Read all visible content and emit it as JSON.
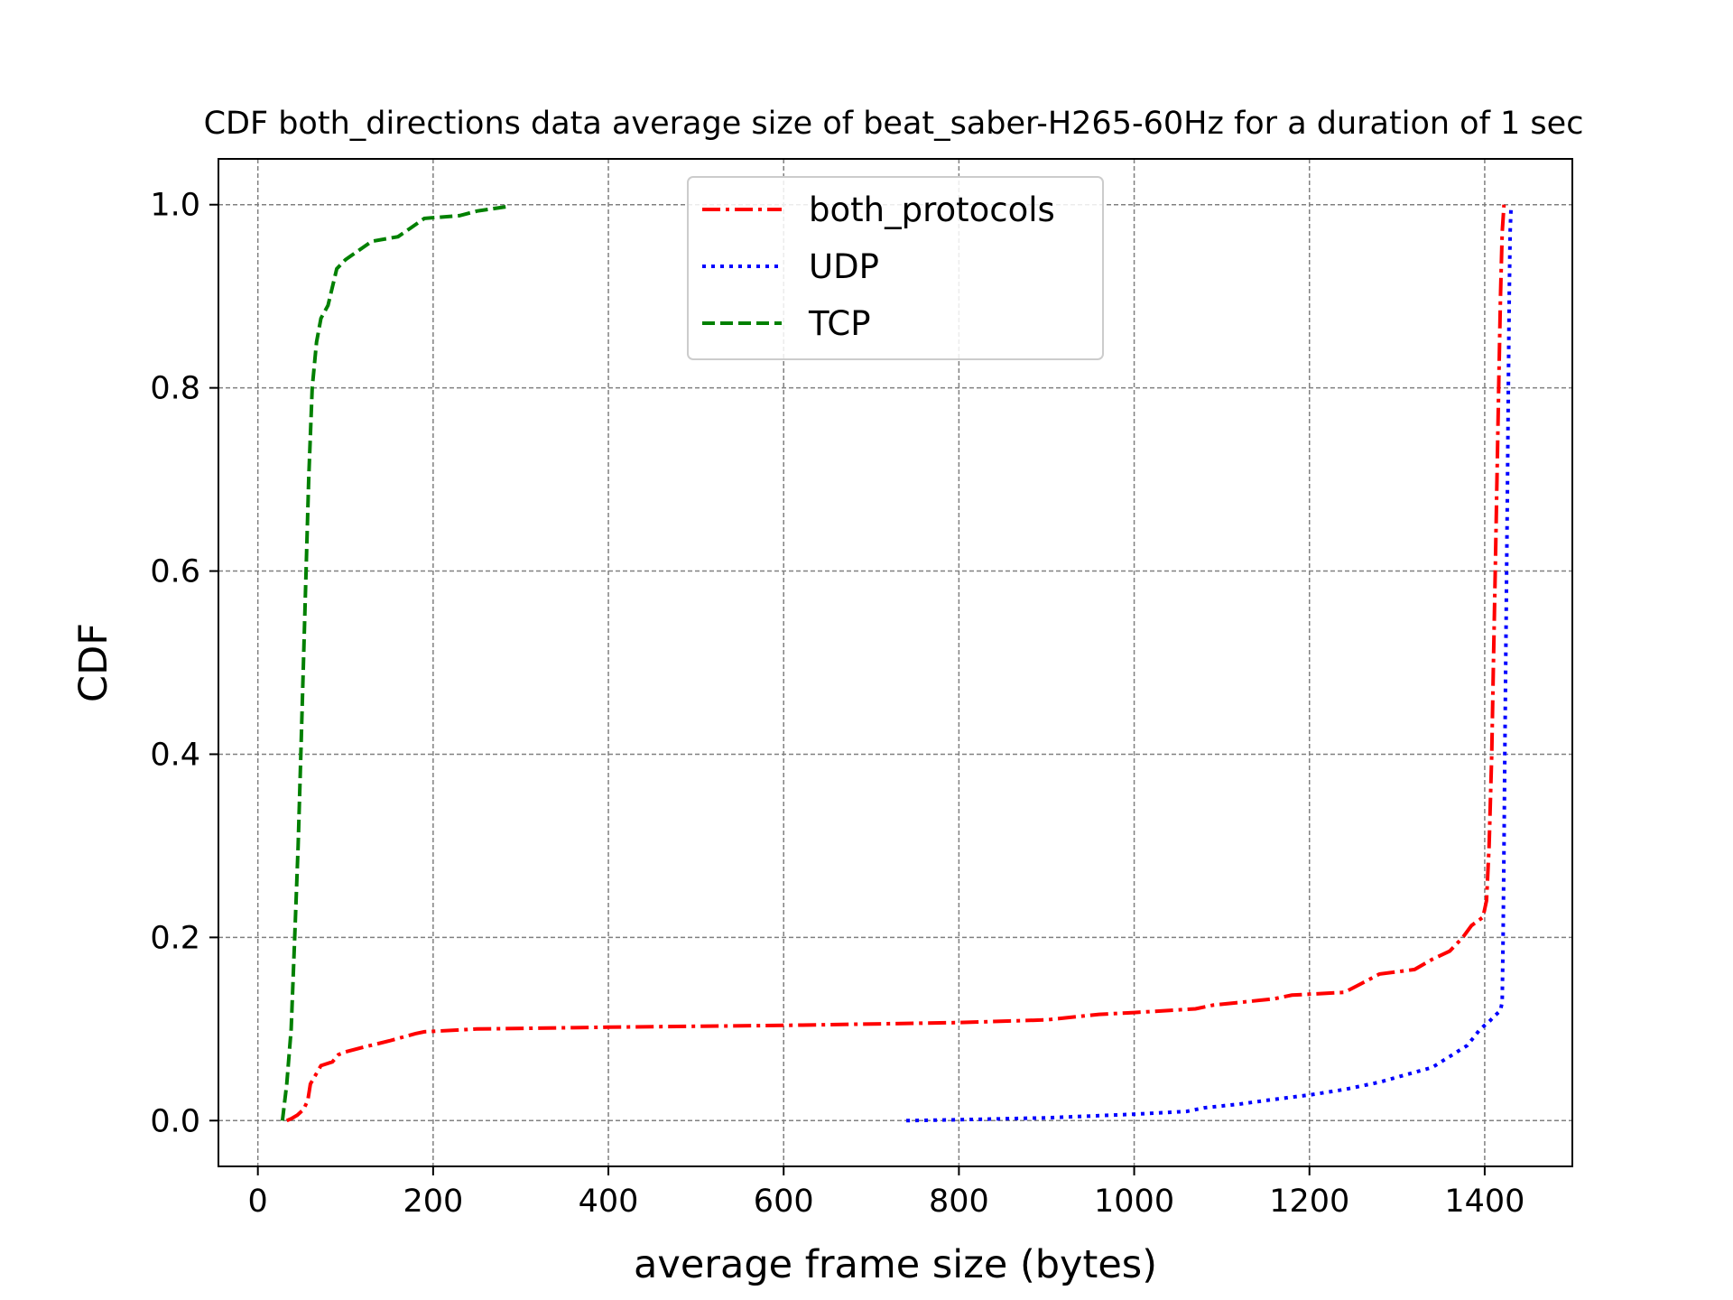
{
  "chart_data": {
    "type": "line",
    "title": "CDF both_directions data average size of beat_saber-H265-60Hz for a duration of 1 sec",
    "xlabel": "average frame size (bytes)",
    "ylabel": "CDF",
    "xlim": [
      -45,
      1500
    ],
    "ylim": [
      -0.05,
      1.05
    ],
    "xticks": [
      0,
      200,
      400,
      600,
      800,
      1000,
      1200,
      1400
    ],
    "yticks": [
      0.0,
      0.2,
      0.4,
      0.6,
      0.8,
      1.0
    ],
    "xtick_labels": [
      "0",
      "200",
      "400",
      "600",
      "800",
      "1000",
      "1200",
      "1400"
    ],
    "ytick_labels": [
      "0.0",
      "0.2",
      "0.4",
      "0.6",
      "0.8",
      "1.0"
    ],
    "grid": true,
    "legend_position": "upper center",
    "series": [
      {
        "name": "both_protocols",
        "color": "#ff0000",
        "style": "dashdot",
        "points": [
          [
            33,
            0.0
          ],
          [
            38,
            0.002
          ],
          [
            45,
            0.006
          ],
          [
            52,
            0.012
          ],
          [
            57,
            0.022
          ],
          [
            60,
            0.04
          ],
          [
            66,
            0.05
          ],
          [
            72,
            0.06
          ],
          [
            85,
            0.064
          ],
          [
            92,
            0.072
          ],
          [
            100,
            0.075
          ],
          [
            120,
            0.08
          ],
          [
            150,
            0.087
          ],
          [
            180,
            0.095
          ],
          [
            190,
            0.097
          ],
          [
            250,
            0.1
          ],
          [
            400,
            0.102
          ],
          [
            600,
            0.104
          ],
          [
            800,
            0.107
          ],
          [
            900,
            0.11
          ],
          [
            960,
            0.116
          ],
          [
            1000,
            0.118
          ],
          [
            1070,
            0.122
          ],
          [
            1090,
            0.126
          ],
          [
            1120,
            0.129
          ],
          [
            1160,
            0.133
          ],
          [
            1180,
            0.137
          ],
          [
            1240,
            0.14
          ],
          [
            1260,
            0.15
          ],
          [
            1280,
            0.16
          ],
          [
            1320,
            0.165
          ],
          [
            1340,
            0.176
          ],
          [
            1360,
            0.185
          ],
          [
            1375,
            0.2
          ],
          [
            1385,
            0.213
          ],
          [
            1398,
            0.222
          ],
          [
            1402,
            0.24
          ],
          [
            1405,
            0.3
          ],
          [
            1408,
            0.4
          ],
          [
            1410,
            0.5
          ],
          [
            1412,
            0.6
          ],
          [
            1414,
            0.7
          ],
          [
            1416,
            0.8
          ],
          [
            1418,
            0.9
          ],
          [
            1420,
            0.97
          ],
          [
            1422,
            1.0
          ]
        ]
      },
      {
        "name": "UDP",
        "color": "#0000ff",
        "style": "dotted",
        "points": [
          [
            740,
            0.0
          ],
          [
            800,
            0.001
          ],
          [
            900,
            0.003
          ],
          [
            1000,
            0.007
          ],
          [
            1060,
            0.01
          ],
          [
            1080,
            0.014
          ],
          [
            1120,
            0.018
          ],
          [
            1150,
            0.022
          ],
          [
            1200,
            0.028
          ],
          [
            1240,
            0.034
          ],
          [
            1280,
            0.042
          ],
          [
            1310,
            0.05
          ],
          [
            1340,
            0.058
          ],
          [
            1360,
            0.07
          ],
          [
            1380,
            0.082
          ],
          [
            1395,
            0.1
          ],
          [
            1405,
            0.108
          ],
          [
            1412,
            0.115
          ],
          [
            1418,
            0.12
          ],
          [
            1420,
            0.13
          ],
          [
            1421,
            0.2
          ],
          [
            1422,
            0.3
          ],
          [
            1423,
            0.4
          ],
          [
            1424,
            0.5
          ],
          [
            1425,
            0.6
          ],
          [
            1426,
            0.7
          ],
          [
            1427,
            0.8
          ],
          [
            1428,
            0.9
          ],
          [
            1429,
            0.97
          ],
          [
            1430,
            0.995
          ]
        ]
      },
      {
        "name": "TCP",
        "color": "#008000",
        "style": "dashed",
        "points": [
          [
            28,
            0.0
          ],
          [
            33,
            0.04
          ],
          [
            38,
            0.1
          ],
          [
            42,
            0.2
          ],
          [
            46,
            0.3
          ],
          [
            49,
            0.4
          ],
          [
            52,
            0.5
          ],
          [
            55,
            0.6
          ],
          [
            58,
            0.7
          ],
          [
            62,
            0.8
          ],
          [
            67,
            0.85
          ],
          [
            72,
            0.876
          ],
          [
            80,
            0.89
          ],
          [
            90,
            0.93
          ],
          [
            100,
            0.94
          ],
          [
            115,
            0.95
          ],
          [
            130,
            0.96
          ],
          [
            160,
            0.965
          ],
          [
            175,
            0.975
          ],
          [
            190,
            0.985
          ],
          [
            230,
            0.988
          ],
          [
            250,
            0.993
          ],
          [
            285,
            0.998
          ]
        ]
      }
    ]
  }
}
